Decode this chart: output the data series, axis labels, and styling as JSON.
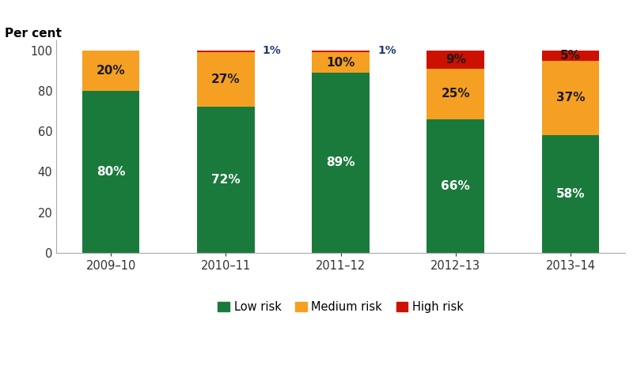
{
  "categories": [
    "2009–10",
    "2010–11",
    "2011–12",
    "2012–13",
    "2013–14"
  ],
  "low_risk": [
    80,
    72,
    89,
    66,
    58
  ],
  "medium_risk": [
    20,
    27,
    10,
    25,
    37
  ],
  "high_risk": [
    0,
    1,
    1,
    9,
    5
  ],
  "low_risk_labels": [
    "80%",
    "72%",
    "89%",
    "66%",
    "58%"
  ],
  "medium_risk_labels": [
    "20%",
    "27%",
    "10%",
    "25%",
    "37%"
  ],
  "high_risk_labels": [
    "",
    "1%",
    "1%",
    "9%",
    "5%"
  ],
  "low_color": "#1a7a3c",
  "medium_color": "#f5a023",
  "high_color": "#cc1100",
  "title": "Per cent",
  "ylim": [
    0,
    105
  ],
  "yticks": [
    0,
    20,
    40,
    60,
    80,
    100
  ],
  "legend_labels": [
    "Low risk",
    "Medium risk",
    "High risk"
  ],
  "bar_width": 0.5,
  "small_label_color": "#1f3a6e",
  "medium_label_color": "#1a1a1a",
  "high_label_color": "#1a1a1a"
}
